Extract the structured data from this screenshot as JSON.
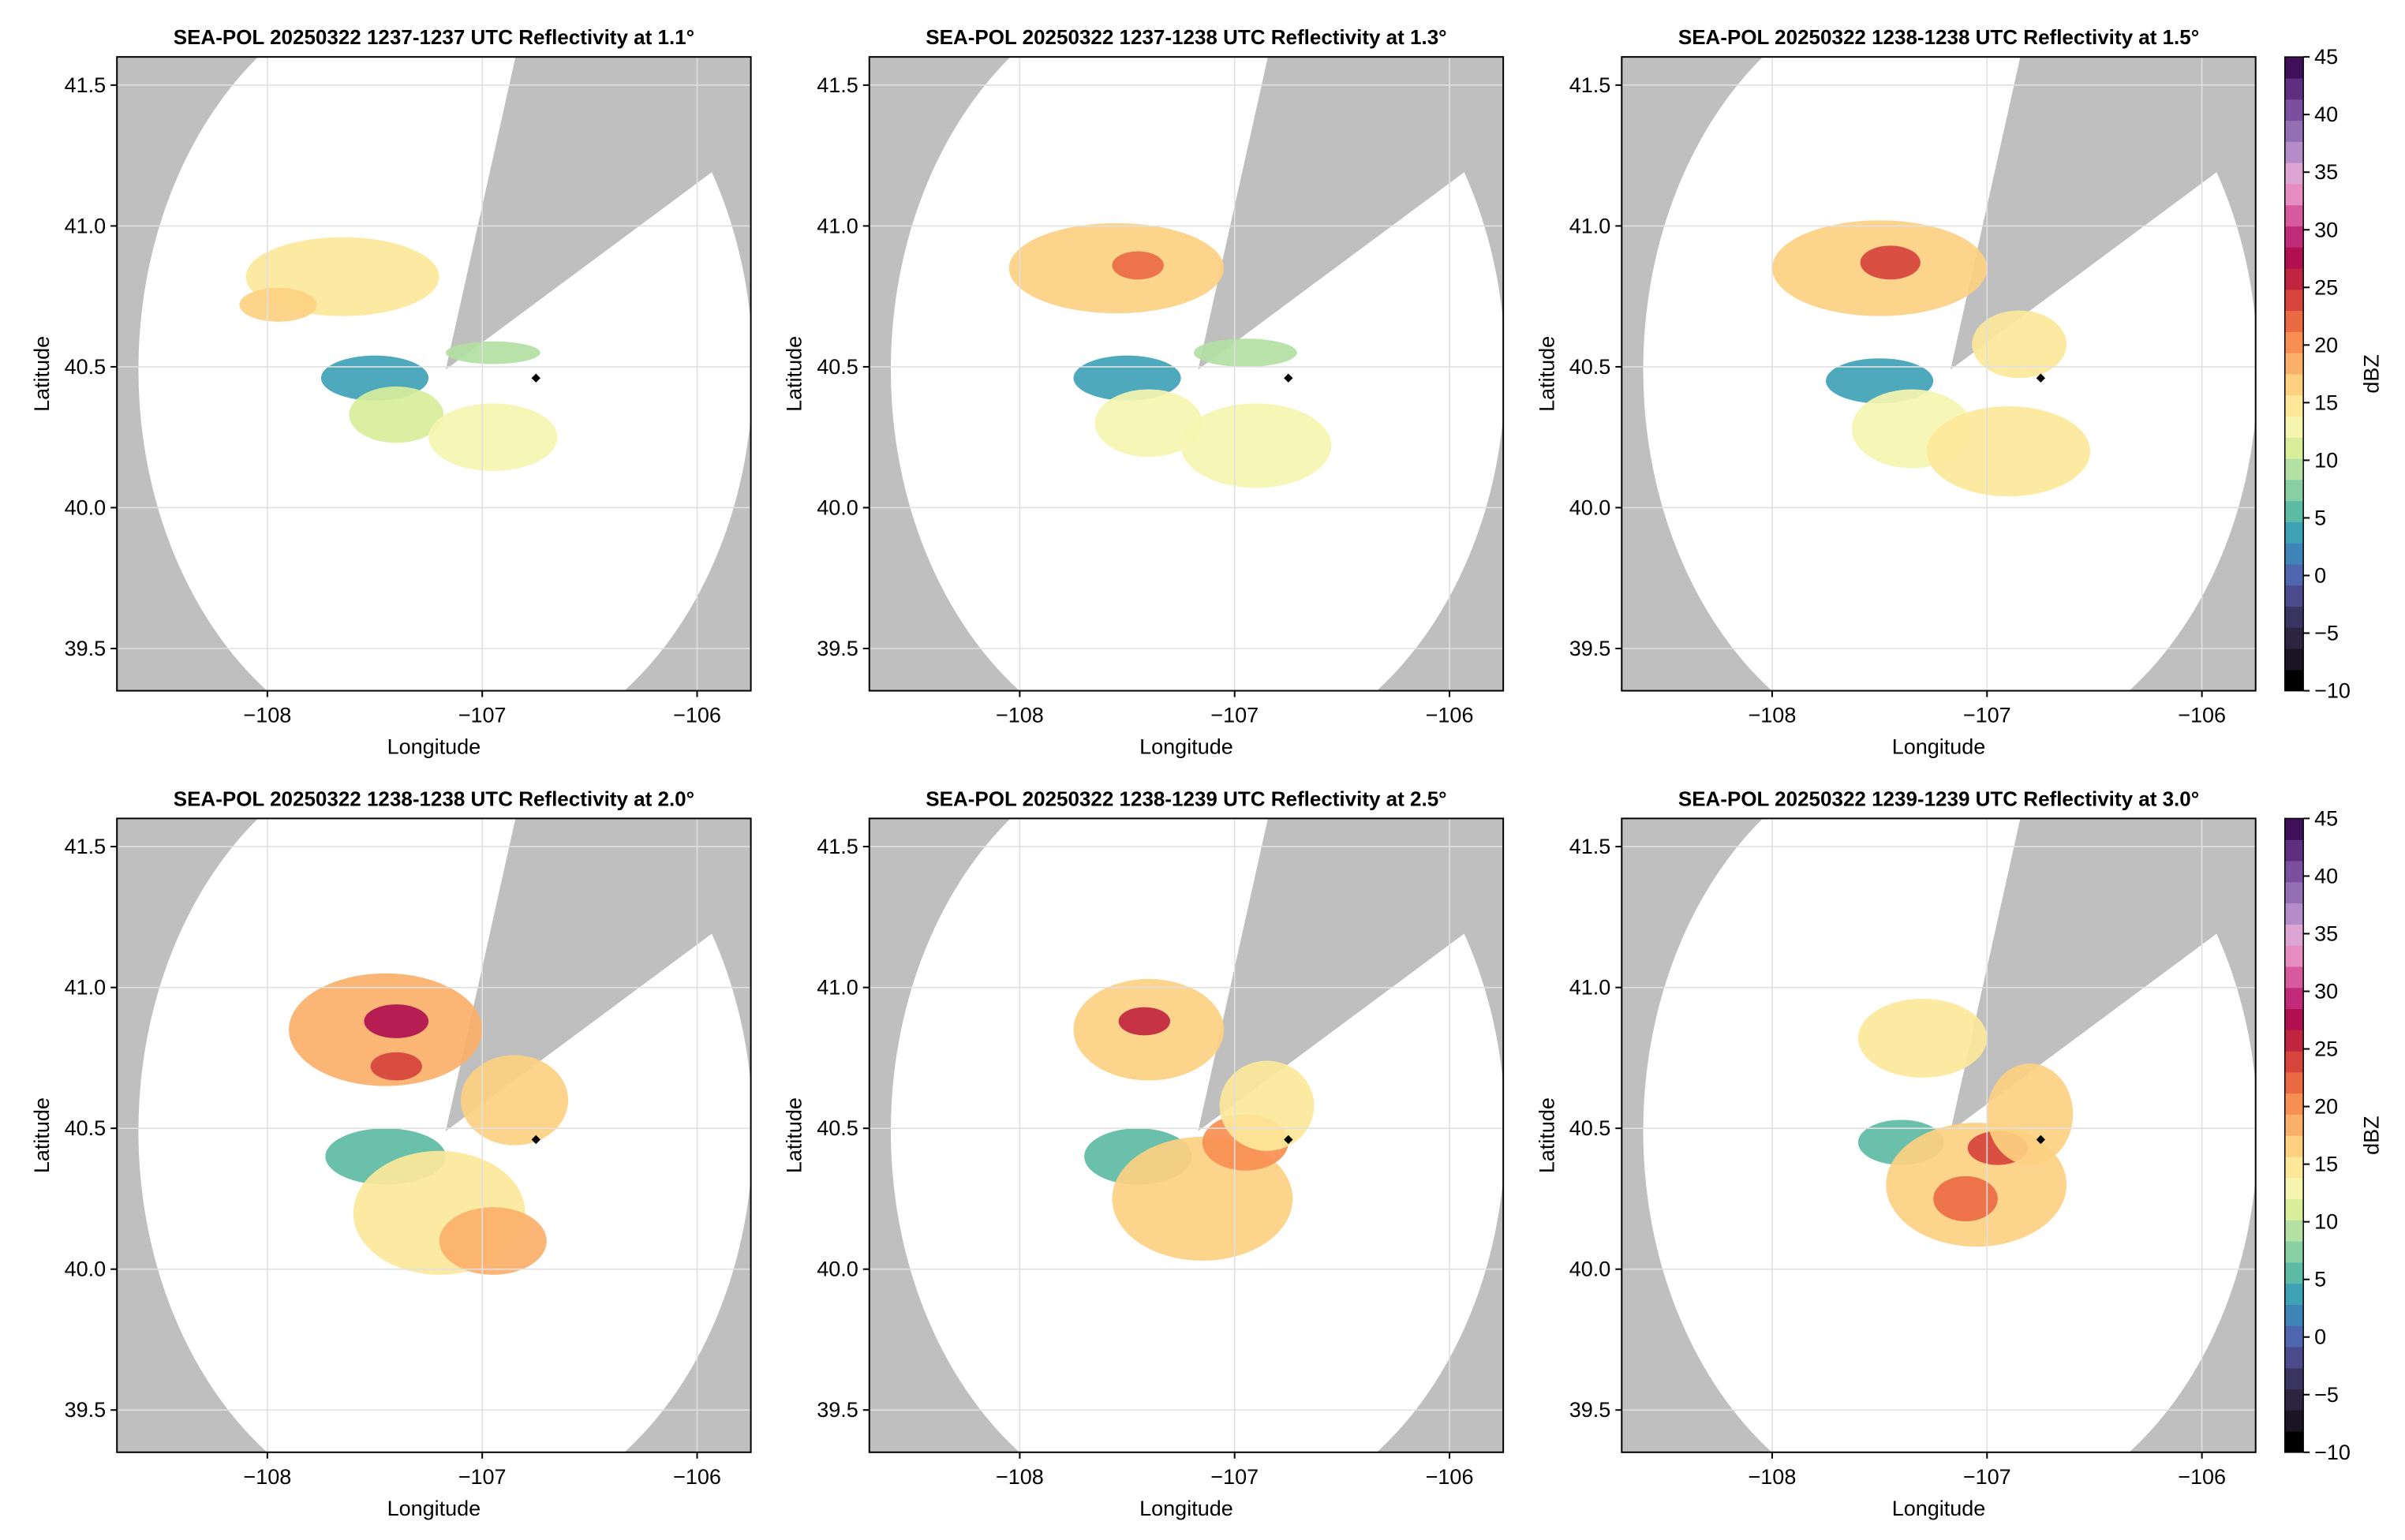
{
  "chart_data": [
    {
      "type": "heatmap",
      "title": "SEA-POL 20250322 1237-1237 UTC Reflectivity at 1.1°",
      "xlabel": "Longitude",
      "ylabel": "Latitude",
      "xlim": [
        -108.7,
        -105.75
      ],
      "ylim": [
        39.35,
        41.6
      ],
      "xticks": [
        {
          "value": -108,
          "label": "−108"
        },
        {
          "value": -107,
          "label": "−107"
        },
        {
          "value": -106,
          "label": "−106"
        }
      ],
      "yticks": [
        {
          "value": 39.5,
          "label": "39.5"
        },
        {
          "value": 40.0,
          "label": "40.0"
        },
        {
          "value": 40.5,
          "label": "40.5"
        },
        {
          "value": 41.0,
          "label": "41.0"
        },
        {
          "value": 41.5,
          "label": "41.5"
        }
      ],
      "grid": true,
      "radar": {
        "lon": -107.17,
        "lat": 40.49,
        "range_deg": 1.43
      },
      "blocked_sectors_deg": [
        [
          16,
          60
        ]
      ],
      "marker": {
        "lon": -106.75,
        "lat": 40.46
      },
      "echo_regions": [
        {
          "lon": -107.65,
          "lat": 40.82,
          "rx": 0.45,
          "ry": 0.14,
          "dbz": 14
        },
        {
          "lon": -107.95,
          "lat": 40.72,
          "rx": 0.18,
          "ry": 0.06,
          "dbz": 16
        },
        {
          "lon": -107.5,
          "lat": 40.46,
          "rx": 0.25,
          "ry": 0.08,
          "dbz": 3
        },
        {
          "lon": -107.4,
          "lat": 40.33,
          "rx": 0.22,
          "ry": 0.1,
          "dbz": 11
        },
        {
          "lon": -106.95,
          "lat": 40.25,
          "rx": 0.3,
          "ry": 0.12,
          "dbz": 12
        },
        {
          "lon": -106.95,
          "lat": 40.55,
          "rx": 0.22,
          "ry": 0.04,
          "dbz": 9
        }
      ]
    },
    {
      "type": "heatmap",
      "title": "SEA-POL 20250322 1237-1238 UTC Reflectivity at 1.3°",
      "xlabel": "Longitude",
      "ylabel": "Latitude",
      "xlim": [
        -108.7,
        -105.75
      ],
      "ylim": [
        39.35,
        41.6
      ],
      "xticks": [
        {
          "value": -108,
          "label": "−108"
        },
        {
          "value": -107,
          "label": "−107"
        },
        {
          "value": -106,
          "label": "−106"
        }
      ],
      "yticks": [
        {
          "value": 39.5,
          "label": "39.5"
        },
        {
          "value": 40.0,
          "label": "40.0"
        },
        {
          "value": 40.5,
          "label": "40.5"
        },
        {
          "value": 41.0,
          "label": "41.0"
        },
        {
          "value": 41.5,
          "label": "41.5"
        }
      ],
      "grid": true,
      "radar": {
        "lon": -107.17,
        "lat": 40.49,
        "range_deg": 1.43
      },
      "blocked_sectors_deg": [
        [
          16,
          60
        ]
      ],
      "marker": {
        "lon": -106.75,
        "lat": 40.46
      },
      "echo_regions": [
        {
          "lon": -107.55,
          "lat": 40.85,
          "rx": 0.5,
          "ry": 0.16,
          "dbz": 16
        },
        {
          "lon": -107.45,
          "lat": 40.86,
          "rx": 0.12,
          "ry": 0.05,
          "dbz": 22
        },
        {
          "lon": -107.5,
          "lat": 40.46,
          "rx": 0.25,
          "ry": 0.08,
          "dbz": 3
        },
        {
          "lon": -107.4,
          "lat": 40.3,
          "rx": 0.25,
          "ry": 0.12,
          "dbz": 12
        },
        {
          "lon": -106.9,
          "lat": 40.22,
          "rx": 0.35,
          "ry": 0.15,
          "dbz": 13
        },
        {
          "lon": -106.95,
          "lat": 40.55,
          "rx": 0.24,
          "ry": 0.05,
          "dbz": 10
        }
      ]
    },
    {
      "type": "heatmap",
      "title": "SEA-POL 20250322 1238-1238 UTC Reflectivity at 1.5°",
      "xlabel": "Longitude",
      "ylabel": "Latitude",
      "xlim": [
        -108.7,
        -105.75
      ],
      "ylim": [
        39.35,
        41.6
      ],
      "xticks": [
        {
          "value": -108,
          "label": "−108"
        },
        {
          "value": -107,
          "label": "−107"
        },
        {
          "value": -106,
          "label": "−106"
        }
      ],
      "yticks": [
        {
          "value": 39.5,
          "label": "39.5"
        },
        {
          "value": 40.0,
          "label": "40.0"
        },
        {
          "value": 40.5,
          "label": "40.5"
        },
        {
          "value": 41.0,
          "label": "41.0"
        },
        {
          "value": 41.5,
          "label": "41.5"
        }
      ],
      "grid": true,
      "radar": {
        "lon": -107.17,
        "lat": 40.49,
        "range_deg": 1.43
      },
      "blocked_sectors_deg": [
        [
          16,
          60
        ]
      ],
      "marker": {
        "lon": -106.75,
        "lat": 40.46
      },
      "echo_regions": [
        {
          "lon": -107.5,
          "lat": 40.85,
          "rx": 0.5,
          "ry": 0.17,
          "dbz": 17
        },
        {
          "lon": -107.45,
          "lat": 40.87,
          "rx": 0.14,
          "ry": 0.06,
          "dbz": 24
        },
        {
          "lon": -107.5,
          "lat": 40.45,
          "rx": 0.25,
          "ry": 0.08,
          "dbz": 4
        },
        {
          "lon": -107.35,
          "lat": 40.28,
          "rx": 0.28,
          "ry": 0.14,
          "dbz": 13
        },
        {
          "lon": -106.9,
          "lat": 40.2,
          "rx": 0.38,
          "ry": 0.16,
          "dbz": 14
        },
        {
          "lon": -106.85,
          "lat": 40.58,
          "rx": 0.22,
          "ry": 0.12,
          "dbz": 14
        }
      ]
    },
    {
      "type": "heatmap",
      "title": "SEA-POL 20250322 1238-1238 UTC Reflectivity at 2.0°",
      "xlabel": "Longitude",
      "ylabel": "Latitude",
      "xlim": [
        -108.7,
        -105.75
      ],
      "ylim": [
        39.35,
        41.6
      ],
      "xticks": [
        {
          "value": -108,
          "label": "−108"
        },
        {
          "value": -107,
          "label": "−107"
        },
        {
          "value": -106,
          "label": "−106"
        }
      ],
      "yticks": [
        {
          "value": 39.5,
          "label": "39.5"
        },
        {
          "value": 40.0,
          "label": "40.0"
        },
        {
          "value": 40.5,
          "label": "40.5"
        },
        {
          "value": 41.0,
          "label": "41.0"
        },
        {
          "value": 41.5,
          "label": "41.5"
        }
      ],
      "grid": true,
      "radar": {
        "lon": -107.17,
        "lat": 40.49,
        "range_deg": 1.43
      },
      "blocked_sectors_deg": [
        [
          16,
          60
        ]
      ],
      "marker": {
        "lon": -106.75,
        "lat": 40.46
      },
      "echo_regions": [
        {
          "lon": -107.45,
          "lat": 40.85,
          "rx": 0.45,
          "ry": 0.2,
          "dbz": 18
        },
        {
          "lon": -107.4,
          "lat": 40.88,
          "rx": 0.15,
          "ry": 0.06,
          "dbz": 27
        },
        {
          "lon": -107.4,
          "lat": 40.72,
          "rx": 0.12,
          "ry": 0.05,
          "dbz": 24
        },
        {
          "lon": -107.45,
          "lat": 40.4,
          "rx": 0.28,
          "ry": 0.1,
          "dbz": 6
        },
        {
          "lon": -107.2,
          "lat": 40.2,
          "rx": 0.4,
          "ry": 0.22,
          "dbz": 15
        },
        {
          "lon": -106.95,
          "lat": 40.1,
          "rx": 0.25,
          "ry": 0.12,
          "dbz": 18
        },
        {
          "lon": -106.85,
          "lat": 40.6,
          "rx": 0.25,
          "ry": 0.16,
          "dbz": 16
        }
      ]
    },
    {
      "type": "heatmap",
      "title": "SEA-POL 20250322 1238-1239 UTC Reflectivity at 2.5°",
      "xlabel": "Longitude",
      "ylabel": "Latitude",
      "xlim": [
        -108.7,
        -105.75
      ],
      "ylim": [
        39.35,
        41.6
      ],
      "xticks": [
        {
          "value": -108,
          "label": "−108"
        },
        {
          "value": -107,
          "label": "−107"
        },
        {
          "value": -106,
          "label": "−106"
        }
      ],
      "yticks": [
        {
          "value": 39.5,
          "label": "39.5"
        },
        {
          "value": 40.0,
          "label": "40.0"
        },
        {
          "value": 40.5,
          "label": "40.5"
        },
        {
          "value": 41.0,
          "label": "41.0"
        },
        {
          "value": 41.5,
          "label": "41.5"
        }
      ],
      "grid": true,
      "radar": {
        "lon": -107.17,
        "lat": 40.49,
        "range_deg": 1.43
      },
      "blocked_sectors_deg": [
        [
          16,
          60
        ]
      ],
      "marker": {
        "lon": -106.75,
        "lat": 40.46
      },
      "echo_regions": [
        {
          "lon": -107.4,
          "lat": 40.85,
          "rx": 0.35,
          "ry": 0.18,
          "dbz": 17
        },
        {
          "lon": -107.42,
          "lat": 40.88,
          "rx": 0.12,
          "ry": 0.05,
          "dbz": 26
        },
        {
          "lon": -107.45,
          "lat": 40.4,
          "rx": 0.25,
          "ry": 0.1,
          "dbz": 5
        },
        {
          "lon": -107.15,
          "lat": 40.25,
          "rx": 0.42,
          "ry": 0.22,
          "dbz": 16
        },
        {
          "lon": -106.95,
          "lat": 40.45,
          "rx": 0.2,
          "ry": 0.1,
          "dbz": 20
        },
        {
          "lon": -106.85,
          "lat": 40.58,
          "rx": 0.22,
          "ry": 0.16,
          "dbz": 15
        }
      ]
    },
    {
      "type": "heatmap",
      "title": "SEA-POL 20250322 1239-1239 UTC Reflectivity at 3.0°",
      "xlabel": "Longitude",
      "ylabel": "Latitude",
      "xlim": [
        -108.7,
        -105.75
      ],
      "ylim": [
        39.35,
        41.6
      ],
      "xticks": [
        {
          "value": -108,
          "label": "−108"
        },
        {
          "value": -107,
          "label": "−107"
        },
        {
          "value": -106,
          "label": "−106"
        }
      ],
      "yticks": [
        {
          "value": 39.5,
          "label": "39.5"
        },
        {
          "value": 40.0,
          "label": "40.0"
        },
        {
          "value": 40.5,
          "label": "40.5"
        },
        {
          "value": 41.0,
          "label": "41.0"
        },
        {
          "value": 41.5,
          "label": "41.5"
        }
      ],
      "grid": true,
      "radar": {
        "lon": -107.17,
        "lat": 40.49,
        "range_deg": 1.43
      },
      "blocked_sectors_deg": [
        [
          16,
          60
        ]
      ],
      "marker": {
        "lon": -106.75,
        "lat": 40.46
      },
      "echo_regions": [
        {
          "lon": -107.3,
          "lat": 40.82,
          "rx": 0.3,
          "ry": 0.14,
          "dbz": 15
        },
        {
          "lon": -107.4,
          "lat": 40.45,
          "rx": 0.2,
          "ry": 0.08,
          "dbz": 6
        },
        {
          "lon": -107.05,
          "lat": 40.3,
          "rx": 0.42,
          "ry": 0.22,
          "dbz": 17
        },
        {
          "lon": -107.1,
          "lat": 40.25,
          "rx": 0.15,
          "ry": 0.08,
          "dbz": 22
        },
        {
          "lon": -106.95,
          "lat": 40.43,
          "rx": 0.14,
          "ry": 0.06,
          "dbz": 23
        },
        {
          "lon": -106.8,
          "lat": 40.55,
          "rx": 0.2,
          "ry": 0.18,
          "dbz": 16
        }
      ]
    }
  ],
  "colorbar": {
    "label": "dBZ",
    "vmin": -10,
    "vmax": 45,
    "ticks": [
      {
        "value": -10,
        "label": "−10"
      },
      {
        "value": -5,
        "label": "−5"
      },
      {
        "value": 0,
        "label": "0"
      },
      {
        "value": 5,
        "label": "5"
      },
      {
        "value": 10,
        "label": "10"
      },
      {
        "value": 15,
        "label": "15"
      },
      {
        "value": 20,
        "label": "20"
      },
      {
        "value": 25,
        "label": "25"
      },
      {
        "value": 30,
        "label": "30"
      },
      {
        "value": 35,
        "label": "35"
      },
      {
        "value": 40,
        "label": "40"
      },
      {
        "value": 45,
        "label": "45"
      }
    ],
    "colors": [
      "#000000",
      "#1a1525",
      "#2b2540",
      "#3a3560",
      "#4a4a8c",
      "#4e66ad",
      "#3e84b7",
      "#3ea2b5",
      "#5dbba4",
      "#88cfa4",
      "#b3e0a3",
      "#d8ee9b",
      "#f5f5b0",
      "#fde89a",
      "#fdd081",
      "#fbb06a",
      "#f78f52",
      "#ea6a44",
      "#d6443c",
      "#c0253f",
      "#b01050",
      "#c22b7a",
      "#d75a9e",
      "#e58cc0",
      "#dca5d4",
      "#b48cc7",
      "#9370b4",
      "#7a4f9f",
      "#5e2f80",
      "#3f0f5a"
    ]
  },
  "colors": {
    "blocked": "#bfbfbf",
    "grid": "#e0e0e0",
    "frame": "#000000",
    "marker": "#000000"
  }
}
